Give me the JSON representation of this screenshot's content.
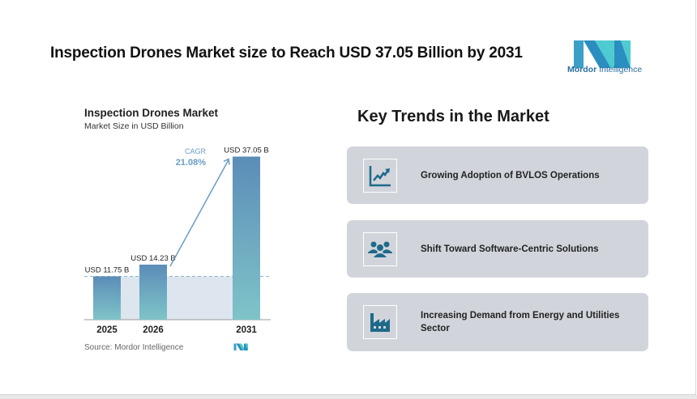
{
  "header": {
    "title": "Inspection Drones Market size to Reach USD 37.05 Billion by 2031"
  },
  "logo": {
    "text_bold": "Mordor",
    "text_light": "Intelligence"
  },
  "chart_data": {
    "type": "bar",
    "title": "Inspection Drones Market",
    "subtitle": "Market Size in USD Billion",
    "categories": [
      "2025",
      "2026",
      "2031"
    ],
    "values": [
      11.75,
      14.23,
      37.05
    ],
    "data_labels": [
      "USD 11.75 B",
      "USD 14.23 B",
      "USD 37.05 B"
    ],
    "annotation": {
      "label": "CAGR",
      "value": "21.08%"
    },
    "source": "Source:  Mordor Intelligence",
    "colors": {
      "bar_top": "#5b8db8",
      "bar_bottom": "#7fc4c8",
      "annotation": "#6a9cc4",
      "shade": "#dde6ef"
    }
  },
  "trends": {
    "heading": "Key Trends in the Market",
    "items": [
      {
        "label": "Growing Adoption of BVLOS Operations",
        "icon": "line-chart-icon"
      },
      {
        "label": "Shift Toward Software-Centric Solutions",
        "icon": "people-group-icon"
      },
      {
        "label": "Increasing Demand from Energy and Utilities Sector",
        "icon": "factory-icon"
      }
    ],
    "icon_color": "#1f6a8a"
  }
}
